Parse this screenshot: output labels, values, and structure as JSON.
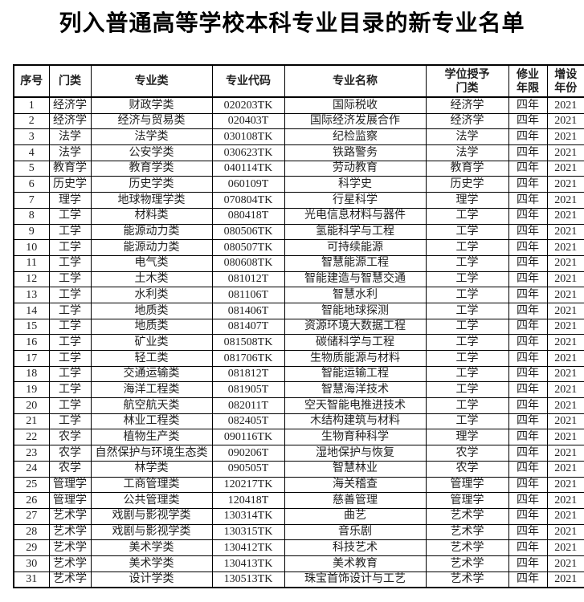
{
  "title": "列入普通高等学校本科专业目录的新专业名单",
  "table": {
    "headers": [
      "序号",
      "门类",
      "专业类",
      "专业代码",
      "专业名称",
      "学位授予\n门类",
      "修业\n年限",
      "增设\n年份"
    ],
    "rows": [
      [
        "1",
        "经济学",
        "财政学类",
        "020203TK",
        "国际税收",
        "经济学",
        "四年",
        "2021"
      ],
      [
        "2",
        "经济学",
        "经济与贸易类",
        "020403T",
        "国际经济发展合作",
        "经济学",
        "四年",
        "2021"
      ],
      [
        "3",
        "法学",
        "法学类",
        "030108TK",
        "纪检监察",
        "法学",
        "四年",
        "2021"
      ],
      [
        "4",
        "法学",
        "公安学类",
        "030623TK",
        "铁路警务",
        "法学",
        "四年",
        "2021"
      ],
      [
        "5",
        "教育学",
        "教育学类",
        "040114TK",
        "劳动教育",
        "教育学",
        "四年",
        "2021"
      ],
      [
        "6",
        "历史学",
        "历史学类",
        "060109T",
        "科学史",
        "历史学",
        "四年",
        "2021"
      ],
      [
        "7",
        "理学",
        "地球物理学类",
        "070804TK",
        "行星科学",
        "理学",
        "四年",
        "2021"
      ],
      [
        "8",
        "工学",
        "材料类",
        "080418T",
        "光电信息材料与器件",
        "工学",
        "四年",
        "2021"
      ],
      [
        "9",
        "工学",
        "能源动力类",
        "080506TK",
        "氢能科学与工程",
        "工学",
        "四年",
        "2021"
      ],
      [
        "10",
        "工学",
        "能源动力类",
        "080507TK",
        "可持续能源",
        "工学",
        "四年",
        "2021"
      ],
      [
        "11",
        "工学",
        "电气类",
        "080608TK",
        "智慧能源工程",
        "工学",
        "四年",
        "2021"
      ],
      [
        "12",
        "工学",
        "土木类",
        "081012T",
        "智能建造与智慧交通",
        "工学",
        "四年",
        "2021"
      ],
      [
        "13",
        "工学",
        "水利类",
        "081106T",
        "智慧水利",
        "工学",
        "四年",
        "2021"
      ],
      [
        "14",
        "工学",
        "地质类",
        "081406T",
        "智能地球探测",
        "工学",
        "四年",
        "2021"
      ],
      [
        "15",
        "工学",
        "地质类",
        "081407T",
        "资源环境大数据工程",
        "工学",
        "四年",
        "2021"
      ],
      [
        "16",
        "工学",
        "矿业类",
        "081508TK",
        "碳储科学与工程",
        "工学",
        "四年",
        "2021"
      ],
      [
        "17",
        "工学",
        "轻工类",
        "081706TK",
        "生物质能源与材料",
        "工学",
        "四年",
        "2021"
      ],
      [
        "18",
        "工学",
        "交通运输类",
        "081812T",
        "智能运输工程",
        "工学",
        "四年",
        "2021"
      ],
      [
        "19",
        "工学",
        "海洋工程类",
        "081905T",
        "智慧海洋技术",
        "工学",
        "四年",
        "2021"
      ],
      [
        "20",
        "工学",
        "航空航天类",
        "082011T",
        "空天智能电推进技术",
        "工学",
        "四年",
        "2021"
      ],
      [
        "21",
        "工学",
        "林业工程类",
        "082405T",
        "木结构建筑与材料",
        "工学",
        "四年",
        "2021"
      ],
      [
        "22",
        "农学",
        "植物生产类",
        "090116TK",
        "生物育种科学",
        "理学",
        "四年",
        "2021"
      ],
      [
        "23",
        "农学",
        "自然保护与环境生态类",
        "090206T",
        "湿地保护与恢复",
        "农学",
        "四年",
        "2021"
      ],
      [
        "24",
        "农学",
        "林学类",
        "090505T",
        "智慧林业",
        "农学",
        "四年",
        "2021"
      ],
      [
        "25",
        "管理学",
        "工商管理类",
        "120217TK",
        "海关稽查",
        "管理学",
        "四年",
        "2021"
      ],
      [
        "26",
        "管理学",
        "公共管理类",
        "120418T",
        "慈善管理",
        "管理学",
        "四年",
        "2021"
      ],
      [
        "27",
        "艺术学",
        "戏剧与影视学类",
        "130314TK",
        "曲艺",
        "艺术学",
        "四年",
        "2021"
      ],
      [
        "28",
        "艺术学",
        "戏剧与影视学类",
        "130315TK",
        "音乐剧",
        "艺术学",
        "四年",
        "2021"
      ],
      [
        "29",
        "艺术学",
        "美术学类",
        "130412TK",
        "科技艺术",
        "艺术学",
        "四年",
        "2021"
      ],
      [
        "30",
        "艺术学",
        "美术学类",
        "130413TK",
        "美术教育",
        "艺术学",
        "四年",
        "2021"
      ],
      [
        "31",
        "艺术学",
        "设计学类",
        "130513TK",
        "珠宝首饰设计与工艺",
        "艺术学",
        "四年",
        "2021"
      ]
    ]
  },
  "colors": {
    "text": "#1a1a1a",
    "border": "#000000",
    "background": "#ffffff"
  }
}
